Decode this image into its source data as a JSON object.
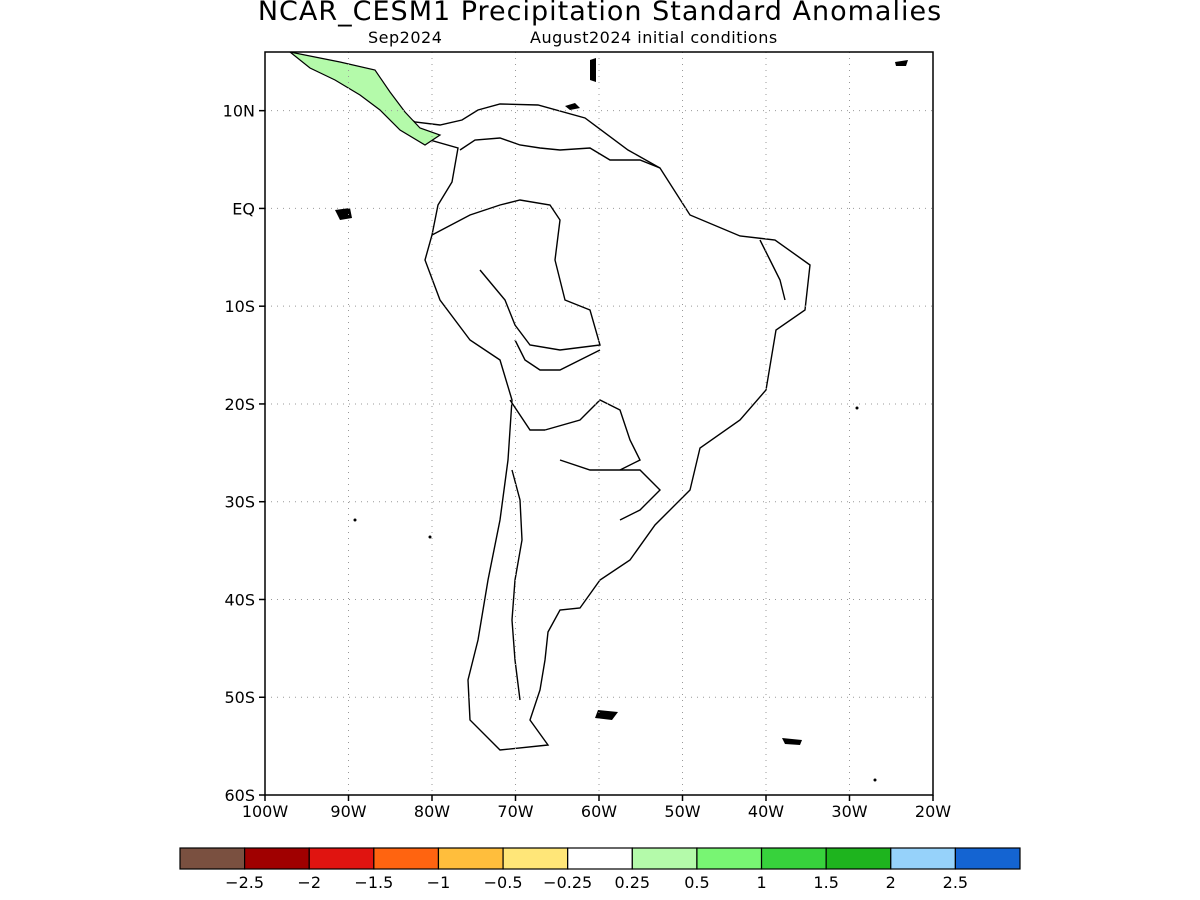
{
  "header": {
    "title": "NCAR_CESM1 Precipitation Standard Anomalies",
    "month": "Sep2024",
    "initial": "August2024 initial conditions"
  },
  "map": {
    "lon_range": [
      -100,
      -20
    ],
    "lat_range": [
      -60,
      16
    ],
    "lat_ticks": [
      {
        "value": 10,
        "label": "10N"
      },
      {
        "value": 0,
        "label": "EQ"
      },
      {
        "value": -10,
        "label": "10S"
      },
      {
        "value": -20,
        "label": "20S"
      },
      {
        "value": -30,
        "label": "30S"
      },
      {
        "value": -40,
        "label": "40S"
      },
      {
        "value": -50,
        "label": "50S"
      },
      {
        "value": -60,
        "label": "60S"
      }
    ],
    "lon_ticks": [
      {
        "value": -100,
        "label": "100W"
      },
      {
        "value": -90,
        "label": "90W"
      },
      {
        "value": -80,
        "label": "80W"
      },
      {
        "value": -70,
        "label": "70W"
      },
      {
        "value": -60,
        "label": "60W"
      },
      {
        "value": -50,
        "label": "50W"
      },
      {
        "value": -40,
        "label": "40W"
      },
      {
        "value": -30,
        "label": "30W"
      },
      {
        "value": -20,
        "label": "20W"
      }
    ],
    "grid": true
  },
  "colorbar": {
    "colors": [
      "#7a5040",
      "#a00000",
      "#e01410",
      "#ff6410",
      "#ffbe3c",
      "#ffe678",
      "#ffffff",
      "#b4faaa",
      "#78f573",
      "#37d23c",
      "#1eb41e",
      "#96d2fa",
      "#1464d2"
    ],
    "labels": [
      "−2.5",
      "−2",
      "−1.5",
      "−1",
      "−0.5",
      "−0.25",
      "0.25",
      "0.5",
      "1",
      "1.5",
      "2",
      "2.5"
    ]
  }
}
